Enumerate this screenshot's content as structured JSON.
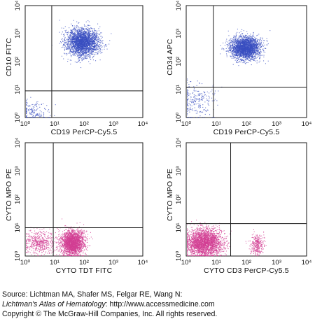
{
  "chart_data": [
    {
      "type": "scatter",
      "scale": "log",
      "x_range": [
        1,
        10000
      ],
      "y_range": [
        1,
        10000
      ],
      "xlabel": "CD19 PerCP-Cy5.5",
      "ylabel": "CD10 FITC",
      "tick_labels": [
        "10⁰",
        "10¹",
        "10²",
        "10³",
        "10⁴"
      ],
      "gates": {
        "x": 8,
        "y": 9
      },
      "point_color": "#3a4fc0",
      "clusters": [
        {
          "x": 90,
          "y": 500,
          "spread_x": 0.27,
          "spread_y": 0.25,
          "count": 2600
        },
        {
          "x": 1.8,
          "y": 1.6,
          "spread_x": 0.25,
          "spread_y": 0.2,
          "count": 160
        }
      ]
    },
    {
      "type": "scatter",
      "scale": "log",
      "x_range": [
        1,
        10000
      ],
      "y_range": [
        1,
        10000
      ],
      "xlabel": "CD19 PerCP-Cy5.5",
      "ylabel": "CD34 APC",
      "tick_labels": [
        "10⁰",
        "10¹",
        "10²",
        "10³",
        "10⁴"
      ],
      "gates": {
        "x": 8,
        "y": 12
      },
      "point_color": "#3a4fc0",
      "clusters": [
        {
          "x": 90,
          "y": 320,
          "spread_x": 0.25,
          "spread_y": 0.2,
          "count": 2600
        },
        {
          "x": 2.2,
          "y": 4,
          "spread_x": 0.3,
          "spread_y": 0.35,
          "count": 230
        }
      ]
    },
    {
      "type": "scatter",
      "scale": "log",
      "x_range": [
        1,
        10000
      ],
      "y_range": [
        1,
        10000
      ],
      "xlabel": "CYTO TDT FITC",
      "ylabel": "CYTO MPO PE",
      "tick_labels": [
        "10⁰",
        "10¹",
        "10²",
        "10³",
        "10⁴"
      ],
      "gates": {
        "x": 9,
        "y": 10
      },
      "point_color": "#d23f93",
      "clusters": [
        {
          "x": 40,
          "y": 3,
          "spread_x": 0.2,
          "spread_y": 0.22,
          "count": 2300
        },
        {
          "x": 3,
          "y": 3,
          "spread_x": 0.25,
          "spread_y": 0.2,
          "count": 500
        }
      ]
    },
    {
      "type": "scatter",
      "scale": "log",
      "x_range": [
        1,
        10000
      ],
      "y_range": [
        1,
        10000
      ],
      "xlabel": "CYTO CD3 PerCP-Cy5.5",
      "ylabel": "CYTO MPO PE",
      "tick_labels": [
        "10⁰",
        "10¹",
        "10²",
        "10³",
        "10⁴"
      ],
      "gates": {
        "x": 30,
        "y": 14
      },
      "point_color": "#d23f93",
      "clusters": [
        {
          "x": 4,
          "y": 3,
          "spread_x": 0.3,
          "spread_y": 0.25,
          "count": 2600
        },
        {
          "x": 220,
          "y": 2.5,
          "spread_x": 0.11,
          "spread_y": 0.2,
          "count": 300
        }
      ]
    }
  ],
  "caption": {
    "source_prefix": "Source: Lichtman MA, Shafer MS, Felgar RE, Wang N:",
    "journal": "Lichtman's Atlas of Hematology",
    "url_text": ": http://www.accessmedicine.com",
    "copyright": "Copyright © The McGraw-Hill Companies, Inc. All rights reserved."
  }
}
